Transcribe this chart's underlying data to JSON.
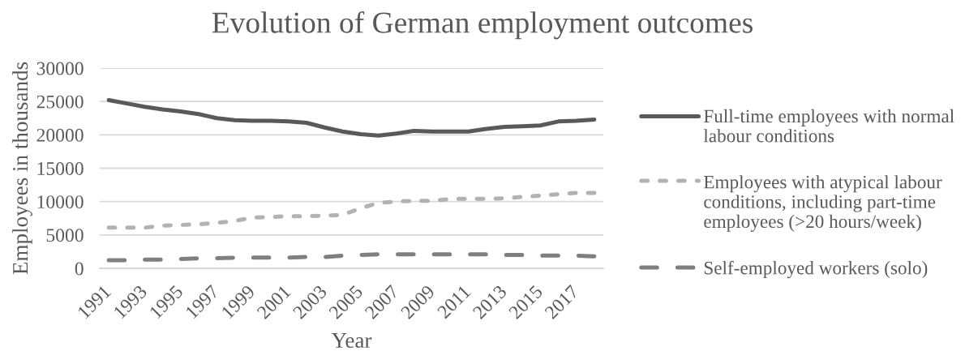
{
  "chart_data": {
    "type": "line",
    "title": "Evolution of German employment outcomes",
    "xlabel": "Year",
    "ylabel": "Employees in thousands",
    "categories": [
      "1991",
      null,
      "1993",
      null,
      "1995",
      null,
      "1997",
      null,
      "1999",
      null,
      "2001",
      null,
      "2003",
      null,
      "2005",
      null,
      "2007",
      null,
      "2009",
      null,
      "2011",
      null,
      "2013",
      null,
      "2015",
      null,
      "2017",
      null
    ],
    "series": [
      {
        "name": "Full-time employees with normal labour conditions",
        "color": "#595959",
        "line_style": "solid",
        "values": [
          25200,
          24700,
          24200,
          23800,
          23500,
          23100,
          22500,
          22200,
          22100,
          22100,
          22000,
          21800,
          21100,
          20500,
          20100,
          19900,
          20200,
          20600,
          20500,
          20500,
          20500,
          20900,
          21200,
          21300,
          21400,
          22000,
          22100,
          22300
        ]
      },
      {
        "name": "Employees with atypical labour conditions, including part-time employees (>20 hours/week)",
        "color": "#b2b2b2",
        "line_style": "dashed",
        "values": [
          6100,
          6100,
          6100,
          6400,
          6500,
          6600,
          6800,
          7100,
          7600,
          7700,
          7800,
          7800,
          7900,
          8000,
          9000,
          9800,
          10000,
          10100,
          10100,
          10400,
          10400,
          10400,
          10500,
          10700,
          10900,
          11100,
          11300,
          11300
        ]
      },
      {
        "name": "Self-employed workers (solo)",
        "color": "#7f7f7f",
        "line_style": "dashed",
        "values": [
          1200,
          1200,
          1300,
          1300,
          1400,
          1500,
          1500,
          1600,
          1600,
          1600,
          1600,
          1700,
          1700,
          1900,
          2000,
          2100,
          2100,
          2100,
          2100,
          2100,
          2100,
          2100,
          2000,
          2000,
          1900,
          1900,
          1900,
          1800
        ]
      }
    ],
    "ylim": [
      0,
      30000
    ],
    "yticks": [
      0,
      5000,
      10000,
      15000,
      20000,
      25000,
      30000
    ],
    "grid": "y",
    "legend": "right"
  }
}
